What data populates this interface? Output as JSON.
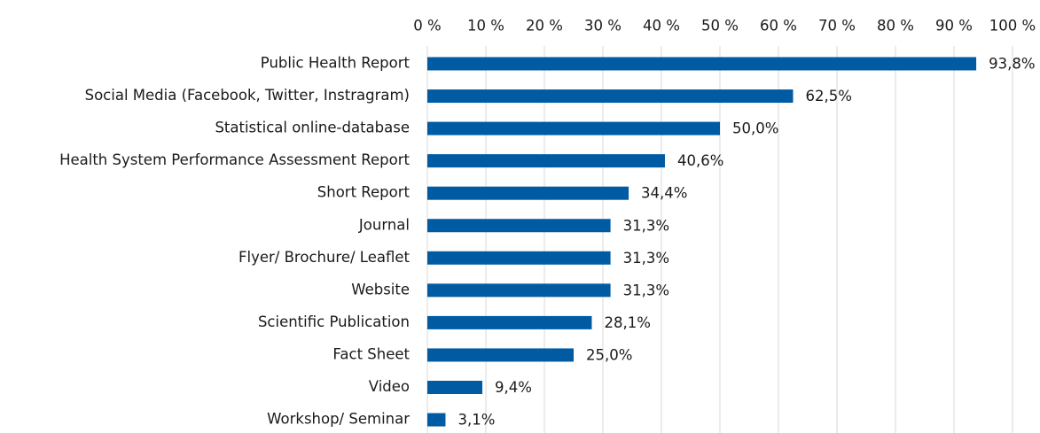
{
  "chart_data": {
    "type": "bar",
    "orientation": "horizontal",
    "categories": [
      "Public Health Report",
      "Social Media (Facebook, Twitter, Instragram)",
      "Statistical online-database",
      "Health System Performance Assessment Report",
      "Short Report",
      "Journal",
      "Flyer/ Brochure/ Leaflet",
      "Website",
      "Scientific Publication",
      "Fact Sheet",
      "Video",
      "Workshop/ Seminar"
    ],
    "values": [
      93.8,
      62.5,
      50.0,
      40.6,
      34.4,
      31.3,
      31.3,
      31.3,
      28.1,
      25.0,
      9.4,
      3.1
    ],
    "value_labels": [
      "93,8%",
      "62,5%",
      "50,0%",
      "40,6%",
      "34,4%",
      "31,3%",
      "31,3%",
      "31,3%",
      "28,1%",
      "25,0%",
      "9,4%",
      "3,1%"
    ],
    "color": "#005ba3",
    "xlim": [
      0,
      100
    ],
    "xticks": [
      {
        "value": 0,
        "label": "0 %"
      },
      {
        "value": 10,
        "label": "10 %"
      },
      {
        "value": 20,
        "label": "20 %"
      },
      {
        "value": 30,
        "label": "30 %"
      },
      {
        "value": 40,
        "label": "40 %"
      },
      {
        "value": 50,
        "label": "50 %"
      },
      {
        "value": 60,
        "label": "60 %"
      },
      {
        "value": 70,
        "label": "70 %"
      },
      {
        "value": 80,
        "label": "80 %"
      },
      {
        "value": 90,
        "label": "90 %"
      },
      {
        "value": 100,
        "label": "100 %"
      }
    ],
    "grid": true
  }
}
